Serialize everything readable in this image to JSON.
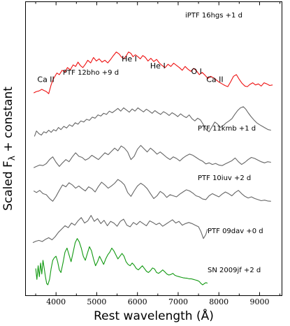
{
  "chart_data": {
    "type": "line",
    "xlabel": "Rest wavelength (Å)",
    "ylabel": "Scaled F_λ + constant",
    "ylabel_main": "Scaled F",
    "ylabel_sub": "λ",
    "ylabel_rest": " + constant",
    "xlim": [
      3250,
      9550
    ],
    "x_ticks": [
      4000,
      5000,
      6000,
      7000,
      8000,
      9000
    ],
    "y_tick_labels": false,
    "colors": {
      "red": "#ee1111",
      "gray": "#666666",
      "green": "#119911"
    },
    "series": [
      {
        "name": "iPTF 16hgs +1 d",
        "color": "#ee1111",
        "offset": 7.0,
        "x": [
          3450,
          3520,
          3580,
          3650,
          3700,
          3760,
          3820,
          3880,
          3930,
          3970,
          4020,
          4080,
          4150,
          4220,
          4280,
          4350,
          4420,
          4480,
          4540,
          4600,
          4660,
          4720,
          4780,
          4850,
          4920,
          4990,
          5060,
          5130,
          5200,
          5270,
          5340,
          5410,
          5480,
          5550,
          5600,
          5660,
          5720,
          5780,
          5840,
          5890,
          5950,
          6010,
          6070,
          6130,
          6190,
          6260,
          6330,
          6400,
          6470,
          6540,
          6610,
          6680,
          6750,
          6820,
          6890,
          6960,
          7030,
          7100,
          7170,
          7240,
          7310,
          7380,
          7450,
          7520,
          7590,
          7660,
          7730,
          7800,
          7870,
          7940,
          8010,
          8080,
          8150,
          8220,
          8290,
          8360,
          8430,
          8500,
          8570,
          8640,
          8700,
          8760,
          8830,
          8900,
          8970,
          9040,
          9110,
          9180,
          9250,
          9320
        ],
        "y": [
          0.05,
          0.1,
          0.12,
          0.18,
          0.14,
          0.1,
          0.02,
          0.35,
          0.55,
          0.65,
          0.78,
          0.72,
          0.88,
          0.82,
          0.98,
          0.9,
          1.08,
          1.02,
          1.18,
          1.05,
          0.98,
          1.1,
          1.25,
          1.15,
          1.35,
          1.22,
          1.3,
          1.18,
          1.25,
          1.15,
          1.28,
          1.42,
          1.55,
          1.48,
          1.38,
          1.3,
          1.4,
          1.55,
          1.5,
          1.38,
          1.45,
          1.38,
          1.3,
          1.42,
          1.36,
          1.22,
          1.32,
          1.2,
          1.28,
          1.14,
          1.05,
          0.98,
          1.1,
          1.02,
          1.14,
          1.06,
          0.98,
          0.88,
          1.02,
          0.92,
          0.84,
          0.95,
          0.86,
          0.72,
          0.8,
          0.7,
          0.58,
          0.66,
          0.6,
          0.52,
          0.44,
          0.38,
          0.32,
          0.28,
          0.46,
          0.66,
          0.72,
          0.55,
          0.4,
          0.3,
          0.28,
          0.36,
          0.42,
          0.34,
          0.38,
          0.3,
          0.42,
          0.38,
          0.32,
          0.34
        ]
      },
      {
        "name": "PTF 12bho +9 d",
        "color": "#666666",
        "offset": 5.4,
        "x": [
          3470,
          3520,
          3580,
          3640,
          3700,
          3760,
          3820,
          3880,
          3940,
          4000,
          4060,
          4120,
          4190,
          4260,
          4330,
          4400,
          4470,
          4540,
          4610,
          4680,
          4750,
          4820,
          4890,
          4960,
          5030,
          5100,
          5170,
          5240,
          5310,
          5380,
          5450,
          5520,
          5590,
          5660,
          5730,
          5800,
          5870,
          5940,
          6010,
          6080,
          6150,
          6220,
          6290,
          6360,
          6430,
          6500,
          6570,
          6640,
          6710,
          6780,
          6850,
          6920,
          6990,
          7060,
          7130,
          7200,
          7270,
          7340,
          7410,
          7480,
          7550,
          7620,
          7690,
          7760,
          7830,
          7900,
          7970,
          8040,
          8110,
          8180,
          8250,
          8320,
          8390,
          8460,
          8530,
          8600,
          8660,
          8720,
          8790,
          8860,
          8930,
          9000,
          9070,
          9140,
          9210,
          9280
        ],
        "y": [
          0.05,
          0.25,
          0.15,
          0.1,
          0.22,
          0.18,
          0.28,
          0.2,
          0.3,
          0.25,
          0.38,
          0.3,
          0.42,
          0.36,
          0.48,
          0.42,
          0.55,
          0.5,
          0.62,
          0.58,
          0.68,
          0.64,
          0.76,
          0.72,
          0.84,
          0.8,
          0.9,
          0.86,
          0.98,
          0.92,
          1.0,
          1.08,
          0.98,
          1.1,
          1.02,
          0.94,
          1.06,
          0.98,
          1.1,
          1.02,
          0.95,
          1.05,
          0.98,
          0.9,
          1.0,
          0.92,
          0.86,
          0.96,
          0.9,
          0.82,
          0.92,
          0.86,
          0.78,
          0.88,
          0.8,
          0.74,
          0.84,
          0.7,
          0.62,
          0.72,
          0.65,
          0.48,
          0.3,
          0.22,
          0.4,
          0.58,
          0.5,
          0.38,
          0.45,
          0.55,
          0.62,
          0.7,
          0.86,
          1.0,
          1.1,
          1.14,
          1.05,
          0.92,
          0.78,
          0.66,
          0.55,
          0.48,
          0.42,
          0.36,
          0.3,
          0.28
        ]
      },
      {
        "name": "PTF 11kmb +1 d",
        "color": "#666666",
        "offset": 4.3,
        "x": [
          3450,
          3520,
          3600,
          3680,
          3760,
          3840,
          3920,
          4000,
          4080,
          4160,
          4240,
          4320,
          4400,
          4480,
          4560,
          4640,
          4720,
          4800,
          4880,
          4960,
          5040,
          5120,
          5200,
          5280,
          5360,
          5440,
          5520,
          5600,
          5680,
          5760,
          5840,
          5920,
          6000,
          6080,
          6160,
          6240,
          6320,
          6400,
          6480,
          6560,
          6640,
          6720,
          6800,
          6880,
          6960,
          7040,
          7120,
          7200,
          7280,
          7360,
          7440,
          7520,
          7600,
          7680,
          7760,
          7840,
          7920,
          8000,
          8080,
          8160,
          8240,
          8320,
          8400,
          8480,
          8560,
          8640,
          8720,
          8800,
          8880,
          8960,
          9040,
          9120,
          9200,
          9280
        ],
        "y": [
          0.0,
          0.05,
          0.1,
          0.08,
          0.15,
          0.3,
          0.4,
          0.2,
          0.05,
          0.18,
          0.3,
          0.22,
          0.4,
          0.55,
          0.42,
          0.38,
          0.28,
          0.34,
          0.46,
          0.38,
          0.3,
          0.42,
          0.55,
          0.48,
          0.6,
          0.72,
          0.62,
          0.8,
          0.72,
          0.58,
          0.3,
          0.42,
          0.68,
          0.82,
          0.7,
          0.58,
          0.72,
          0.62,
          0.5,
          0.58,
          0.48,
          0.38,
          0.3,
          0.4,
          0.34,
          0.25,
          0.36,
          0.44,
          0.5,
          0.46,
          0.38,
          0.3,
          0.24,
          0.14,
          0.18,
          0.12,
          0.16,
          0.1,
          0.08,
          0.14,
          0.2,
          0.26,
          0.36,
          0.22,
          0.12,
          0.2,
          0.3,
          0.38,
          0.34,
          0.28,
          0.22,
          0.18,
          0.22,
          0.2
        ]
      },
      {
        "name": "PTF 10iuv +2 d",
        "color": "#666666",
        "offset": 3.05,
        "x": [
          3450,
          3520,
          3600,
          3680,
          3760,
          3840,
          3920,
          4000,
          4080,
          4160,
          4240,
          4320,
          4400,
          4480,
          4560,
          4640,
          4720,
          4800,
          4880,
          4960,
          5040,
          5120,
          5200,
          5280,
          5360,
          5440,
          5520,
          5600,
          5680,
          5760,
          5840,
          5920,
          6000,
          6080,
          6160,
          6240,
          6320,
          6400,
          6480,
          6560,
          6640,
          6720,
          6800,
          6880,
          6960,
          7040,
          7120,
          7200,
          7280,
          7360,
          7440,
          7520,
          7600,
          7680,
          7760,
          7840,
          7920,
          8000,
          8080,
          8160,
          8240,
          8320,
          8400,
          8480,
          8560,
          8640,
          8720,
          8800,
          8880,
          8960,
          9040,
          9120,
          9200,
          9280
        ],
        "y": [
          0.4,
          0.34,
          0.42,
          0.3,
          0.26,
          0.12,
          0.02,
          0.2,
          0.42,
          0.62,
          0.55,
          0.7,
          0.62,
          0.5,
          0.58,
          0.48,
          0.4,
          0.55,
          0.48,
          0.36,
          0.56,
          0.72,
          0.62,
          0.5,
          0.58,
          0.68,
          0.82,
          0.74,
          0.62,
          0.34,
          0.2,
          0.4,
          0.58,
          0.68,
          0.6,
          0.48,
          0.3,
          0.12,
          0.22,
          0.38,
          0.3,
          0.16,
          0.26,
          0.22,
          0.18,
          0.28,
          0.36,
          0.44,
          0.4,
          0.32,
          0.22,
          0.18,
          0.1,
          0.08,
          0.22,
          0.3,
          0.24,
          0.18,
          0.28,
          0.36,
          0.3,
          0.22,
          0.34,
          0.42,
          0.3,
          0.2,
          0.14,
          0.18,
          0.12,
          0.08,
          0.04,
          0.06,
          0.03,
          0.02
        ]
      },
      {
        "name": "PTF 09dav +0 d",
        "color": "#666666",
        "offset": 1.55,
        "x": [
          3430,
          3500,
          3580,
          3660,
          3740,
          3820,
          3900,
          3980,
          4060,
          4140,
          4220,
          4300,
          4380,
          4460,
          4540,
          4620,
          4700,
          4780,
          4860,
          4940,
          5020,
          5100,
          5180,
          5260,
          5340,
          5420,
          5500,
          5580,
          5660,
          5740,
          5820,
          5900,
          5980,
          6060,
          6140,
          6220,
          6300,
          6380,
          6460,
          6540,
          6620,
          6700,
          6780,
          6860,
          6940,
          7020,
          7100,
          7180,
          7260,
          7340,
          7420,
          7500,
          7560,
          7620,
          7680,
          7720
        ],
        "y": [
          0.0,
          0.05,
          0.08,
          0.04,
          0.12,
          0.18,
          0.1,
          0.22,
          0.38,
          0.5,
          0.62,
          0.55,
          0.72,
          0.64,
          0.8,
          0.92,
          0.72,
          0.8,
          1.0,
          0.78,
          0.88,
          0.7,
          0.82,
          0.62,
          0.78,
          0.72,
          0.6,
          0.78,
          0.86,
          0.64,
          0.58,
          0.74,
          0.66,
          0.78,
          0.7,
          0.62,
          0.8,
          0.74,
          0.66,
          0.72,
          0.6,
          0.68,
          0.76,
          0.84,
          0.72,
          0.78,
          0.64,
          0.7,
          0.74,
          0.7,
          0.64,
          0.58,
          0.4,
          0.15,
          0.3,
          0.5
        ]
      },
      {
        "name": "SN 2009jf +2 d",
        "color": "#119911",
        "offset": 0.0,
        "x": [
          3500,
          3530,
          3560,
          3590,
          3620,
          3650,
          3680,
          3710,
          3740,
          3770,
          3800,
          3840,
          3880,
          3920,
          3960,
          4000,
          4040,
          4080,
          4120,
          4170,
          4220,
          4270,
          4320,
          4370,
          4420,
          4470,
          4520,
          4570,
          4620,
          4670,
          4720,
          4770,
          4820,
          4870,
          4920,
          4970,
          5020,
          5070,
          5120,
          5170,
          5220,
          5270,
          5320,
          5370,
          5420,
          5470,
          5520,
          5570,
          5620,
          5670,
          5720,
          5770,
          5820,
          5870,
          5920,
          5970,
          6020,
          6070,
          6120,
          6170,
          6220,
          6270,
          6320,
          6370,
          6420,
          6470,
          6520,
          6570,
          6620,
          6670,
          6720,
          6770,
          6820,
          6870,
          6920,
          6970,
          7020,
          7070,
          7120,
          7170,
          7220,
          7270,
          7320,
          7370,
          7420,
          7470,
          7520,
          7560,
          7600,
          7640,
          7680,
          7720
        ],
        "y": [
          0.6,
          0.2,
          0.7,
          0.3,
          0.8,
          0.4,
          0.9,
          0.6,
          0.3,
          0.05,
          0.0,
          0.2,
          0.6,
          0.9,
          1.0,
          1.05,
          0.85,
          0.55,
          0.45,
          0.8,
          1.2,
          1.35,
          1.1,
          0.85,
          1.2,
          1.55,
          1.7,
          1.58,
          1.35,
          1.05,
          0.9,
          1.15,
          1.4,
          1.25,
          0.95,
          0.7,
          0.85,
          1.05,
          0.9,
          0.75,
          0.95,
          1.1,
          1.2,
          1.35,
          1.25,
          1.1,
          0.95,
          1.05,
          1.15,
          1.05,
          0.85,
          0.75,
          0.7,
          0.8,
          0.72,
          0.6,
          0.55,
          0.62,
          0.7,
          0.6,
          0.5,
          0.45,
          0.52,
          0.62,
          0.58,
          0.45,
          0.42,
          0.48,
          0.55,
          0.48,
          0.4,
          0.36,
          0.38,
          0.42,
          0.35,
          0.32,
          0.3,
          0.28,
          0.26,
          0.25,
          0.24,
          0.22,
          0.22,
          0.2,
          0.18,
          0.16,
          0.12,
          0.05,
          0.0,
          0.04,
          0.08,
          0.06
        ]
      }
    ],
    "line_ids": [
      {
        "label": "Ca II",
        "x": 3750,
        "y": 7.45
      },
      {
        "label": "He I",
        "x": 5800,
        "y": 8.2
      },
      {
        "label": "He I",
        "x": 6500,
        "y": 7.95
      },
      {
        "label": "O I",
        "x": 7450,
        "y": 7.75
      },
      {
        "label": "Ca II",
        "x": 7900,
        "y": 7.45
      }
    ]
  }
}
